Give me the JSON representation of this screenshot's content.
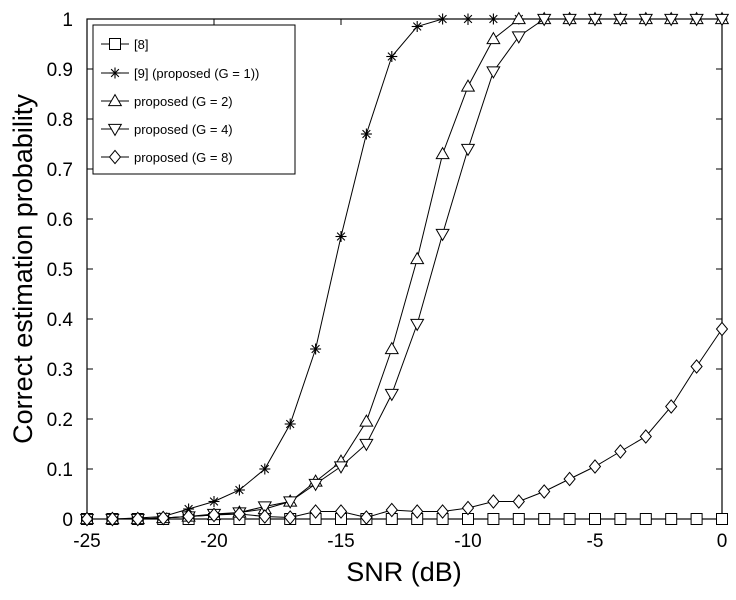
{
  "chart_data": {
    "type": "line",
    "title": "",
    "xlabel": "SNR (dB)",
    "ylabel": "Correct estimation probability",
    "xlim": [
      -25,
      0
    ],
    "ylim": [
      0,
      1
    ],
    "xticks": [
      -25,
      -20,
      -15,
      -10,
      -5,
      0
    ],
    "xtick_labels": [
      "-25",
      "-20",
      "-15",
      "-10",
      "-5",
      "0"
    ],
    "yticks": [
      0,
      0.1,
      0.2,
      0.3,
      0.4,
      0.5,
      0.6,
      0.7,
      0.8,
      0.9,
      1
    ],
    "ytick_labels": [
      "0",
      "0.1",
      "0.2",
      "0.3",
      "0.4",
      "0.5",
      "0.6",
      "0.7",
      "0.8",
      "0.9",
      "1"
    ],
    "grid": false,
    "legend_position": "top-left",
    "x": [
      -25,
      -24,
      -23,
      -22,
      -21,
      -20,
      -19,
      -18,
      -17,
      -16,
      -15,
      -14,
      -13,
      -12,
      -11,
      -10,
      -9,
      -8,
      -7,
      -6,
      -5,
      -4,
      -3,
      -2,
      -1,
      0
    ],
    "series": [
      {
        "name": "[8]",
        "marker": "square",
        "values": [
          0,
          0,
          0,
          0,
          0,
          0,
          0,
          0,
          0,
          0,
          0,
          0,
          0,
          0,
          0,
          0,
          0,
          0,
          0,
          0,
          0,
          0,
          0,
          0,
          0,
          0
        ]
      },
      {
        "name": "[9] (proposed (G = 1))",
        "marker": "star",
        "values": [
          0,
          0,
          0.002,
          0.005,
          0.02,
          0.035,
          0.058,
          0.1,
          0.19,
          0.34,
          0.565,
          0.77,
          0.925,
          0.985,
          1,
          1,
          1,
          1,
          1,
          1,
          1,
          1,
          1,
          1,
          1,
          1
        ]
      },
      {
        "name": "proposed (G = 2)",
        "marker": "triangle-up",
        "values": [
          0,
          0,
          0,
          0.002,
          0.005,
          0.008,
          0.013,
          0.02,
          0.035,
          0.075,
          0.115,
          0.195,
          0.34,
          0.52,
          0.73,
          0.865,
          0.96,
          1,
          1,
          1,
          1,
          1,
          1,
          1,
          1,
          1
        ]
      },
      {
        "name": "proposed (G = 4)",
        "marker": "triangle-down",
        "values": [
          0,
          0,
          0,
          0.002,
          0.005,
          0.01,
          0.013,
          0.025,
          0.035,
          0.07,
          0.105,
          0.15,
          0.25,
          0.39,
          0.57,
          0.74,
          0.895,
          0.965,
          1,
          1,
          1,
          1,
          1,
          1,
          1,
          1
        ]
      },
      {
        "name": "proposed (G = 8)",
        "marker": "diamond",
        "values": [
          0,
          0,
          0,
          0.002,
          0.005,
          0.008,
          0.01,
          0.005,
          0.003,
          0.015,
          0.015,
          0.003,
          0.018,
          0.015,
          0.015,
          0.022,
          0.035,
          0.035,
          0.055,
          0.08,
          0.105,
          0.135,
          0.165,
          0.225,
          0.305,
          0.38
        ]
      }
    ]
  }
}
